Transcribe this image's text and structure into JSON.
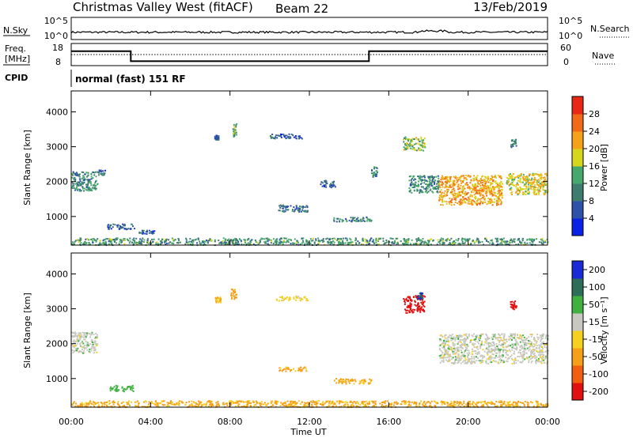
{
  "header": {
    "station": "Christmas Valley West (fitACF)",
    "beam": "Beam 22",
    "date": "13/Feb/2019"
  },
  "noise_panel": {
    "left_label": "N.Sky",
    "left_ticks": [
      "10^5",
      "10^0"
    ],
    "right_ticks": [
      "10^5",
      "10^0"
    ],
    "right_label": "N.Search"
  },
  "freq_panel": {
    "left_label_line1": "Freq.",
    "left_label_line2": "[MHz]",
    "left_ticks": [
      "18",
      "8"
    ],
    "right_ticks": [
      "60",
      "0"
    ],
    "right_label": "Nave",
    "freq_steps": [
      {
        "t": 0,
        "mhz": 14.5
      },
      {
        "t": 3.0,
        "mhz": 10.0
      },
      {
        "t": 15.0,
        "mhz": 14.5
      },
      {
        "t": 24,
        "mhz": 14.5
      }
    ],
    "nave_level": 30
  },
  "cpid": {
    "label": "CPID",
    "text": "normal (fast) 151 RF"
  },
  "power_colorbar": {
    "title": "Power [dB]",
    "ticks": [
      "4",
      "8",
      "12",
      "16",
      "20",
      "24",
      "28"
    ],
    "colors": [
      "#0a22e6",
      "#2e52a8",
      "#3f7c70",
      "#46a86a",
      "#d6d61e",
      "#f5a21a",
      "#f26a18",
      "#e62814"
    ]
  },
  "velocity_colorbar": {
    "title": "Velocity [m s⁻¹]",
    "ticks": [
      "200",
      "100",
      "50",
      "15",
      "-15",
      "-50",
      "-100",
      "-200"
    ],
    "colors": [
      "#1a2ad6",
      "#2e6e58",
      "#40b040",
      "#c8c8c0",
      "#f5d020",
      "#f5a018",
      "#f06010",
      "#e01010"
    ]
  },
  "chart_data": [
    {
      "type": "heatmap",
      "quantity": "Power",
      "ylabel": "Slant Range [km]",
      "ylim": [
        180,
        4600
      ],
      "yticks": [
        "1000",
        "2000",
        "3000",
        "4000"
      ],
      "xlim_hours": [
        0,
        24
      ],
      "clusters": [
        {
          "t0": 0.0,
          "t1": 1.3,
          "r0": 1750,
          "r1": 2300,
          "db": 11
        },
        {
          "t0": 1.3,
          "t1": 1.7,
          "r0": 2200,
          "r1": 2350,
          "db": 8
        },
        {
          "t0": 1.8,
          "t1": 3.2,
          "r0": 650,
          "r1": 800,
          "db": 8
        },
        {
          "t0": 3.4,
          "t1": 4.2,
          "r0": 520,
          "r1": 620,
          "db": 6
        },
        {
          "t0": 7.2,
          "t1": 7.4,
          "r0": 3200,
          "r1": 3350,
          "db": 8
        },
        {
          "t0": 8.1,
          "t1": 8.3,
          "r0": 3300,
          "r1": 3700,
          "db": 13
        },
        {
          "t0": 10.0,
          "t1": 11.6,
          "r0": 3250,
          "r1": 3380,
          "db": 7
        },
        {
          "t0": 10.4,
          "t1": 11.9,
          "r0": 1150,
          "r1": 1350,
          "db": 9
        },
        {
          "t0": 12.5,
          "t1": 13.3,
          "r0": 1850,
          "r1": 2050,
          "db": 7
        },
        {
          "t0": 13.2,
          "t1": 15.1,
          "r0": 870,
          "r1": 1000,
          "db": 11
        },
        {
          "t0": 15.1,
          "t1": 15.4,
          "r0": 2150,
          "r1": 2450,
          "db": 10
        },
        {
          "t0": 16.7,
          "t1": 17.8,
          "r0": 2900,
          "r1": 3300,
          "db": 16
        },
        {
          "t0": 17.0,
          "t1": 18.5,
          "r0": 1700,
          "r1": 2200,
          "db": 11
        },
        {
          "t0": 18.5,
          "t1": 21.7,
          "r0": 1350,
          "r1": 2200,
          "db": 22
        },
        {
          "t0": 21.9,
          "t1": 24.0,
          "r0": 1650,
          "r1": 2250,
          "db": 19
        },
        {
          "t0": 22.1,
          "t1": 22.4,
          "r0": 3000,
          "r1": 3250,
          "db": 10
        },
        {
          "t0": 0.0,
          "t1": 24.0,
          "r0": 200,
          "r1": 400,
          "db": 12
        }
      ]
    },
    {
      "type": "heatmap",
      "quantity": "Velocity",
      "ylabel": "Slant Range [km]",
      "ylim": [
        180,
        4600
      ],
      "yticks": [
        "1000",
        "2000",
        "3000",
        "4000"
      ],
      "xlim_hours": [
        0,
        24
      ],
      "xticks": [
        "00:00",
        "04:00",
        "08:00",
        "12:00",
        "16:00",
        "20:00",
        "00:00"
      ],
      "xlabel": "Time UT",
      "clusters": [
        {
          "t0": 0.0,
          "t1": 1.3,
          "r0": 1750,
          "r1": 2350,
          "v": 0
        },
        {
          "t0": 1.9,
          "t1": 3.1,
          "r0": 650,
          "r1": 820,
          "v": 40
        },
        {
          "t0": 7.2,
          "t1": 7.5,
          "r0": 3200,
          "r1": 3350,
          "v": -40
        },
        {
          "t0": 8.0,
          "t1": 8.3,
          "r0": 3300,
          "r1": 3600,
          "v": -70
        },
        {
          "t0": 10.3,
          "t1": 11.9,
          "r0": 3250,
          "r1": 3380,
          "v": -25
        },
        {
          "t0": 10.4,
          "t1": 11.9,
          "r0": 1230,
          "r1": 1350,
          "v": -60
        },
        {
          "t0": 13.2,
          "t1": 15.1,
          "r0": 870,
          "r1": 1020,
          "v": -60
        },
        {
          "t0": 16.7,
          "t1": 17.8,
          "r0": 2900,
          "r1": 3400,
          "v": -210
        },
        {
          "t0": 17.4,
          "t1": 17.7,
          "r0": 3300,
          "r1": 3500,
          "v": 150
        },
        {
          "t0": 18.5,
          "t1": 24.0,
          "r0": 1450,
          "r1": 2300,
          "v": 0
        },
        {
          "t0": 22.1,
          "t1": 22.4,
          "r0": 3000,
          "r1": 3250,
          "v": -210
        },
        {
          "t0": 0.0,
          "t1": 24.0,
          "r0": 200,
          "r1": 380,
          "v": -60
        }
      ]
    }
  ]
}
